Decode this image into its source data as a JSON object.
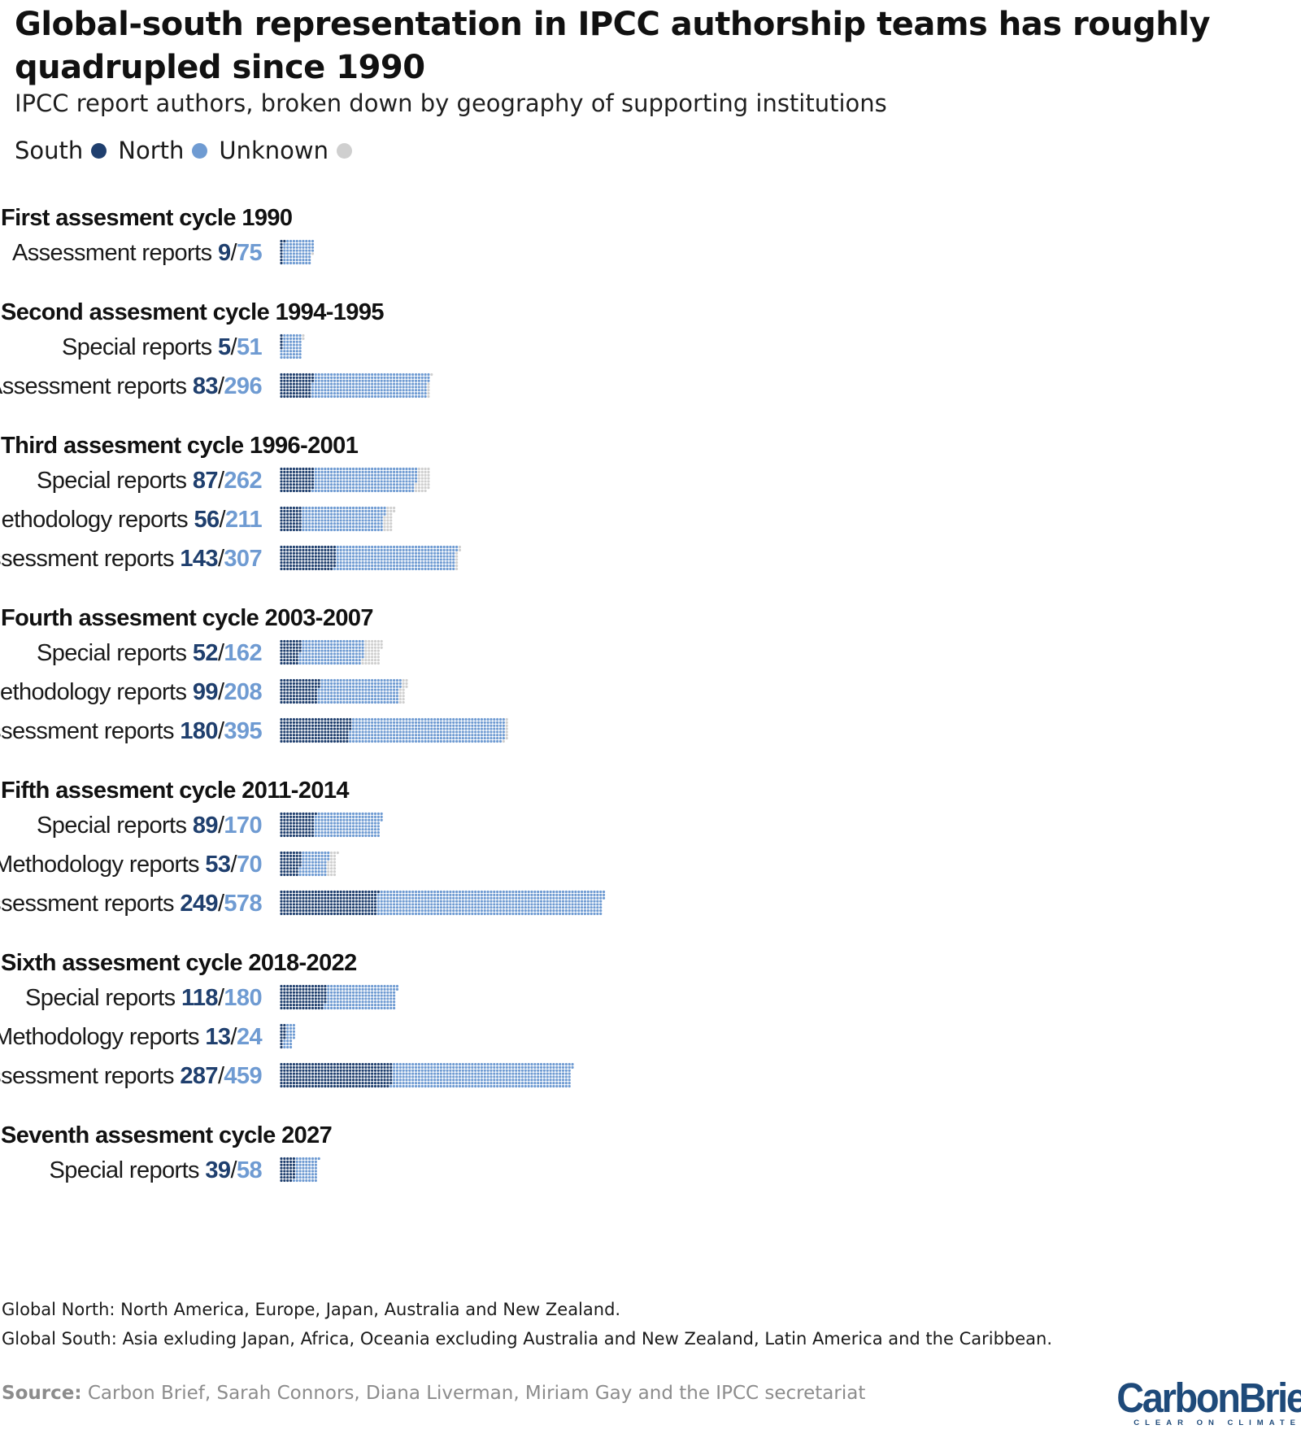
{
  "title": "Global-south representation in IPCC authorship teams has roughly quadrupled since 1990",
  "subtitle": "IPCC report authors, broken down by geography of supporting institutions",
  "legend": {
    "south_label": "South",
    "north_label": "North",
    "unknown_label": "Unknown"
  },
  "colors": {
    "south": "#1f3f6e",
    "north": "#6f9bd2",
    "unknown": "#cfcfcf"
  },
  "chart_data": {
    "type": "dot-bar",
    "groups": [
      {
        "title": "First assesment cycle 1990",
        "rows": [
          {
            "label": "Assessment reports",
            "south": 9,
            "north": 75,
            "unknown": 1
          }
        ]
      },
      {
        "title": "Second assesment cycle 1994-1995",
        "rows": [
          {
            "label": "Special reports",
            "south": 5,
            "north": 51,
            "unknown": 2
          },
          {
            "label": "Assessment reports",
            "south": 83,
            "north": 296,
            "unknown": 6
          }
        ]
      },
      {
        "title": "Third assesment cycle 1996-2001",
        "rows": [
          {
            "label": "Special reports",
            "south": 87,
            "north": 262,
            "unknown": 34
          },
          {
            "label": "Methodology reports",
            "south": 56,
            "north": 211,
            "unknown": 23
          },
          {
            "label": "Assessment reports",
            "south": 143,
            "north": 307,
            "unknown": 8
          }
        ]
      },
      {
        "title": "Fourth assesment cycle 2003-2007",
        "rows": [
          {
            "label": "Special reports",
            "south": 52,
            "north": 162,
            "unknown": 45
          },
          {
            "label": "Methodology reports",
            "south": 99,
            "north": 208,
            "unknown": 16
          },
          {
            "label": "Assessment reports",
            "south": 180,
            "north": 395,
            "unknown": 8
          }
        ]
      },
      {
        "title": "Fifth assesment cycle 2011-2014",
        "rows": [
          {
            "label": "Special reports",
            "south": 89,
            "north": 170,
            "unknown": 0
          },
          {
            "label": "Methodology reports",
            "south": 53,
            "north": 70,
            "unknown": 22
          },
          {
            "label": "Assessment reports",
            "south": 249,
            "north": 578,
            "unknown": 0
          }
        ]
      },
      {
        "title": "Sixth assesment cycle 2018-2022",
        "rows": [
          {
            "label": "Special reports",
            "south": 118,
            "north": 180,
            "unknown": 0
          },
          {
            "label": "Methodology reports",
            "south": 13,
            "north": 24,
            "unknown": 0
          },
          {
            "label": "Assessment reports",
            "south": 287,
            "north": 459,
            "unknown": 0
          }
        ]
      },
      {
        "title": "Seventh assesment cycle 2027",
        "rows": [
          {
            "label": "Special reports",
            "south": 39,
            "north": 58,
            "unknown": 0
          }
        ]
      }
    ]
  },
  "footnotes": [
    "Global North: North America, Europe, Japan, Australia and New Zealand.",
    "Global South: Asia exluding Japan, Africa, Oceania excluding Australia and New Zealand, Latin America and the Caribbean."
  ],
  "source": {
    "label": "Source:",
    "text": "Carbon Brief, Sarah Connors, Diana Liverman, Miriam Gay and the IPCC secretariat"
  },
  "logo": {
    "name": "CarbonBrief",
    "tagline": "CLEAR ON CLIMATE"
  }
}
